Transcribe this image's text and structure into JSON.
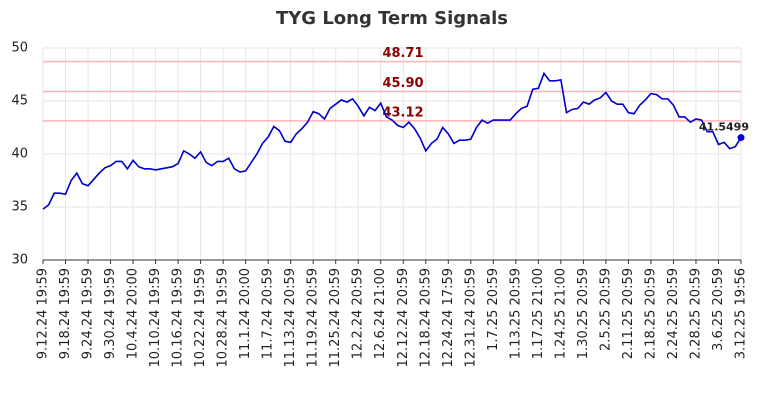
{
  "chart_data": {
    "type": "line",
    "title": "TYG Long Term Signals",
    "categories": [
      "9.12.24 19:59",
      null,
      null,
      null,
      "9.18.24 19:59",
      null,
      null,
      null,
      "9.24.24 19:59",
      null,
      null,
      null,
      "9.30.24 19:59",
      null,
      null,
      null,
      "10.4.24 20:00",
      null,
      null,
      null,
      "10.10.24 19:59",
      null,
      null,
      null,
      "10.16.24 19:59",
      null,
      null,
      null,
      "10.22.24 19:59",
      null,
      null,
      null,
      "10.28.24 19:59",
      null,
      null,
      null,
      "11.1.24 20:00",
      null,
      null,
      null,
      "11.7.24 20:59",
      null,
      null,
      null,
      "11.13.24 20:59",
      null,
      null,
      null,
      "11.19.24 20:59",
      null,
      null,
      null,
      "11.25.24 20:59",
      null,
      null,
      null,
      "12.2.24 20:59",
      null,
      null,
      null,
      "12.6.24 21:00",
      null,
      null,
      null,
      "12.12.24 20:59",
      null,
      null,
      null,
      "12.18.24 20:59",
      null,
      null,
      null,
      "12.24.24 17:59",
      null,
      null,
      null,
      "12.31.24 20:59",
      null,
      null,
      null,
      "1.7.25 20:59",
      null,
      null,
      null,
      "1.13.25 20:59",
      null,
      null,
      null,
      "1.17.25 21:00",
      null,
      null,
      null,
      "1.24.25 21:00",
      null,
      null,
      null,
      "1.30.25 20:59",
      null,
      null,
      null,
      "2.5.25 20:59",
      null,
      null,
      null,
      "2.11.25 20:59",
      null,
      null,
      null,
      "2.18.25 20:59",
      null,
      null,
      null,
      "2.24.25 20:59",
      null,
      null,
      null,
      "2.28.25 20:59",
      null,
      null,
      null,
      "3.6.25 20:59",
      null,
      null,
      null,
      "3.12.25 19:56"
    ],
    "series": [
      {
        "name": "TYG",
        "color": "#0000cc",
        "values": [
          34.8,
          35.2,
          36.3,
          36.3,
          36.2,
          37.5,
          38.2,
          37.2,
          37.0,
          37.6,
          38.2,
          38.7,
          38.9,
          39.3,
          39.3,
          38.6,
          39.4,
          38.8,
          38.6,
          38.6,
          38.5,
          38.6,
          38.7,
          38.8,
          39.1,
          40.3,
          40.0,
          39.6,
          40.2,
          39.2,
          38.9,
          39.3,
          39.3,
          39.6,
          38.6,
          38.3,
          38.4,
          39.2,
          40.0,
          41.0,
          41.6,
          42.6,
          42.2,
          41.2,
          41.1,
          41.9,
          42.4,
          43.0,
          44.0,
          43.8,
          43.3,
          44.3,
          44.7,
          45.1,
          44.9,
          45.2,
          44.5,
          43.6,
          44.4,
          44.1,
          44.8,
          43.5,
          43.2,
          42.7,
          42.5,
          43.0,
          42.4,
          41.5,
          40.3,
          41.0,
          41.4,
          42.5,
          41.9,
          41.0,
          41.3,
          41.3,
          41.4,
          42.5,
          43.2,
          42.9,
          43.2,
          43.2,
          43.2,
          43.2,
          43.8,
          44.3,
          44.5,
          46.1,
          46.2,
          47.6,
          46.9,
          46.9,
          47.0,
          43.9,
          44.2,
          44.3,
          44.9,
          44.7,
          45.1,
          45.3,
          45.8,
          45.0,
          44.7,
          44.7,
          43.9,
          43.8,
          44.6,
          45.1,
          45.7,
          45.6,
          45.2,
          45.2,
          44.6,
          43.5,
          43.5,
          43.0,
          43.3,
          43.2,
          42.1,
          42.1,
          40.9,
          41.1,
          40.5,
          40.7,
          41.5499
        ]
      }
    ],
    "hlines": [
      {
        "value": 48.71,
        "label": "48.71"
      },
      {
        "value": 45.9,
        "label": "45.90"
      },
      {
        "value": 43.12,
        "label": "43.12"
      }
    ],
    "hline_color": "#ffb3b3",
    "hline_label_color": "#8b0000",
    "ylim": [
      30,
      50
    ],
    "yticks": [
      30,
      35,
      40,
      45,
      50
    ],
    "grid": true
  }
}
